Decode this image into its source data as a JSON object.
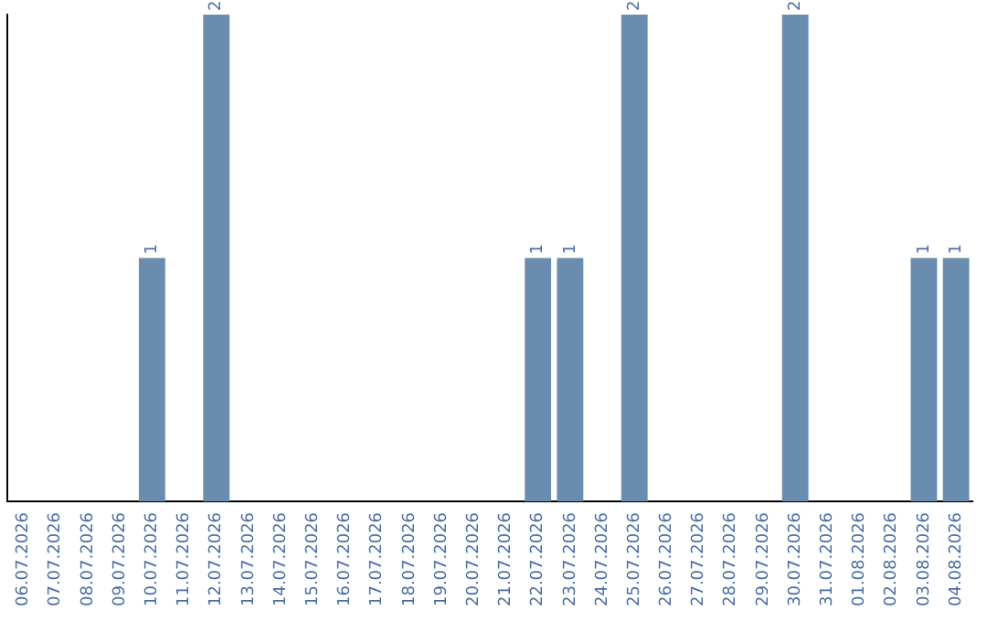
{
  "chart_data": {
    "type": "bar",
    "categories": [
      "06.07.2026",
      "07.07.2026",
      "08.07.2026",
      "09.07.2026",
      "10.07.2026",
      "11.07.2026",
      "12.07.2026",
      "13.07.2026",
      "14.07.2026",
      "15.07.2026",
      "16.07.2026",
      "17.07.2026",
      "18.07.2026",
      "19.07.2026",
      "20.07.2026",
      "21.07.2026",
      "22.07.2026",
      "23.07.2026",
      "24.07.2026",
      "25.07.2026",
      "26.07.2026",
      "27.07.2026",
      "28.07.2026",
      "29.07.2026",
      "30.07.2026",
      "31.07.2026",
      "01.08.2026",
      "02.08.2026",
      "03.08.2026",
      "04.08.2026"
    ],
    "values": [
      0,
      0,
      0,
      0,
      1,
      0,
      2,
      0,
      0,
      0,
      0,
      0,
      0,
      0,
      0,
      0,
      1,
      1,
      0,
      2,
      0,
      0,
      0,
      0,
      2,
      0,
      0,
      0,
      1,
      1
    ],
    "value_labels": [
      null,
      null,
      null,
      null,
      "1",
      null,
      "2",
      null,
      null,
      null,
      null,
      null,
      null,
      null,
      null,
      null,
      "1",
      "1",
      null,
      "2",
      null,
      null,
      null,
      null,
      "2",
      null,
      null,
      null,
      "1",
      "1"
    ],
    "color": "#6a8caf",
    "grid": false,
    "legend": false,
    "tick_labels": "x"
  }
}
